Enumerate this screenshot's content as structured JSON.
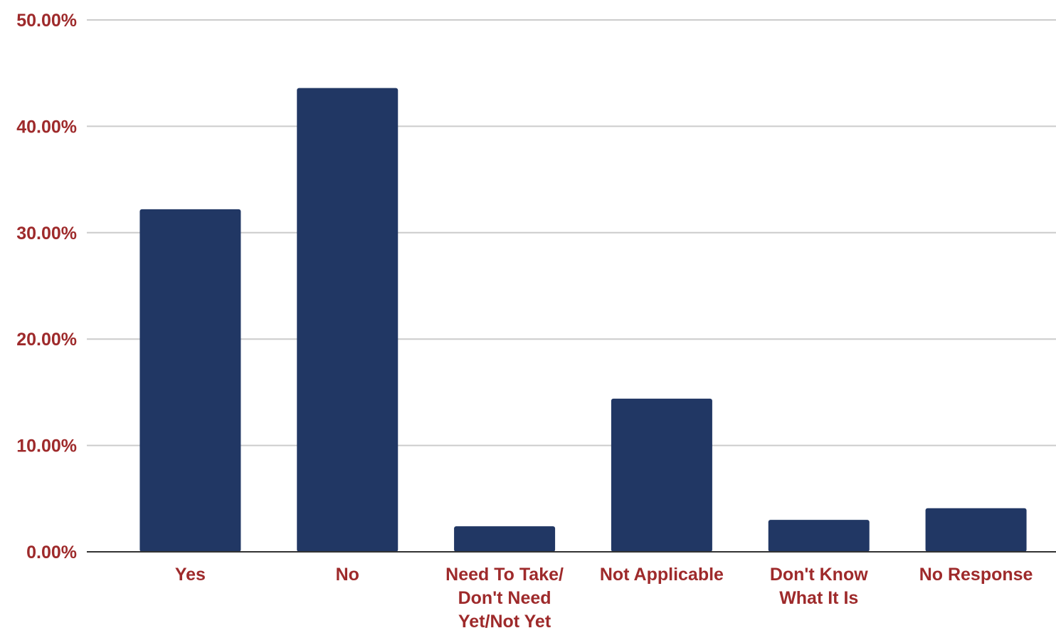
{
  "chart_data": {
    "type": "bar",
    "title": "",
    "xlabel": "",
    "ylabel": "",
    "categories": [
      [
        "Yes"
      ],
      [
        "No"
      ],
      [
        "Need To Take/",
        "Don't Need",
        "Yet/Not Yet"
      ],
      [
        "Not Applicable"
      ],
      [
        "Don't Know",
        "What It Is"
      ],
      [
        "No Response"
      ]
    ],
    "values": [
      32.2,
      43.6,
      2.4,
      14.4,
      3.0,
      4.1
    ],
    "ylim": [
      0,
      50
    ],
    "yticks": [
      0,
      10,
      20,
      30,
      40,
      50
    ],
    "ytick_labels": [
      "0.00%",
      "10.00%",
      "20.00%",
      "30.00%",
      "40.00%",
      "50.00%"
    ],
    "grid": true,
    "legend": "none",
    "colors": {
      "bar": "#213764",
      "label": "#9e2a2b",
      "grid": "#cccccc",
      "axis": "#333333"
    }
  }
}
